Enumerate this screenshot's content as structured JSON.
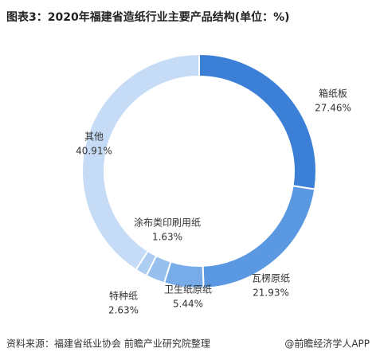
{
  "chart_data": {
    "type": "donut",
    "title": "图表3：2020年福建省造纸行业主要产品结构(单位：%)",
    "categories": [
      "箱纸板",
      "瓦楞原纸",
      "卫生纸原纸",
      "特种纸",
      "涂布类印刷用纸",
      "其他"
    ],
    "values": [
      27.46,
      21.93,
      5.44,
      2.63,
      1.63,
      40.91
    ],
    "value_labels": [
      "27.46%",
      "21.93%",
      "5.44%",
      "2.63%",
      "1.63%",
      "40.91%"
    ],
    "colors": [
      "#3b80d6",
      "#5a98e2",
      "#78ace9",
      "#98c0ef",
      "#aecdf2",
      "#c6dcf6"
    ],
    "source": "资料来源：福建省纸业协会 前瞻产业研究院整理",
    "watermark": "@前瞻经济学人APP"
  }
}
